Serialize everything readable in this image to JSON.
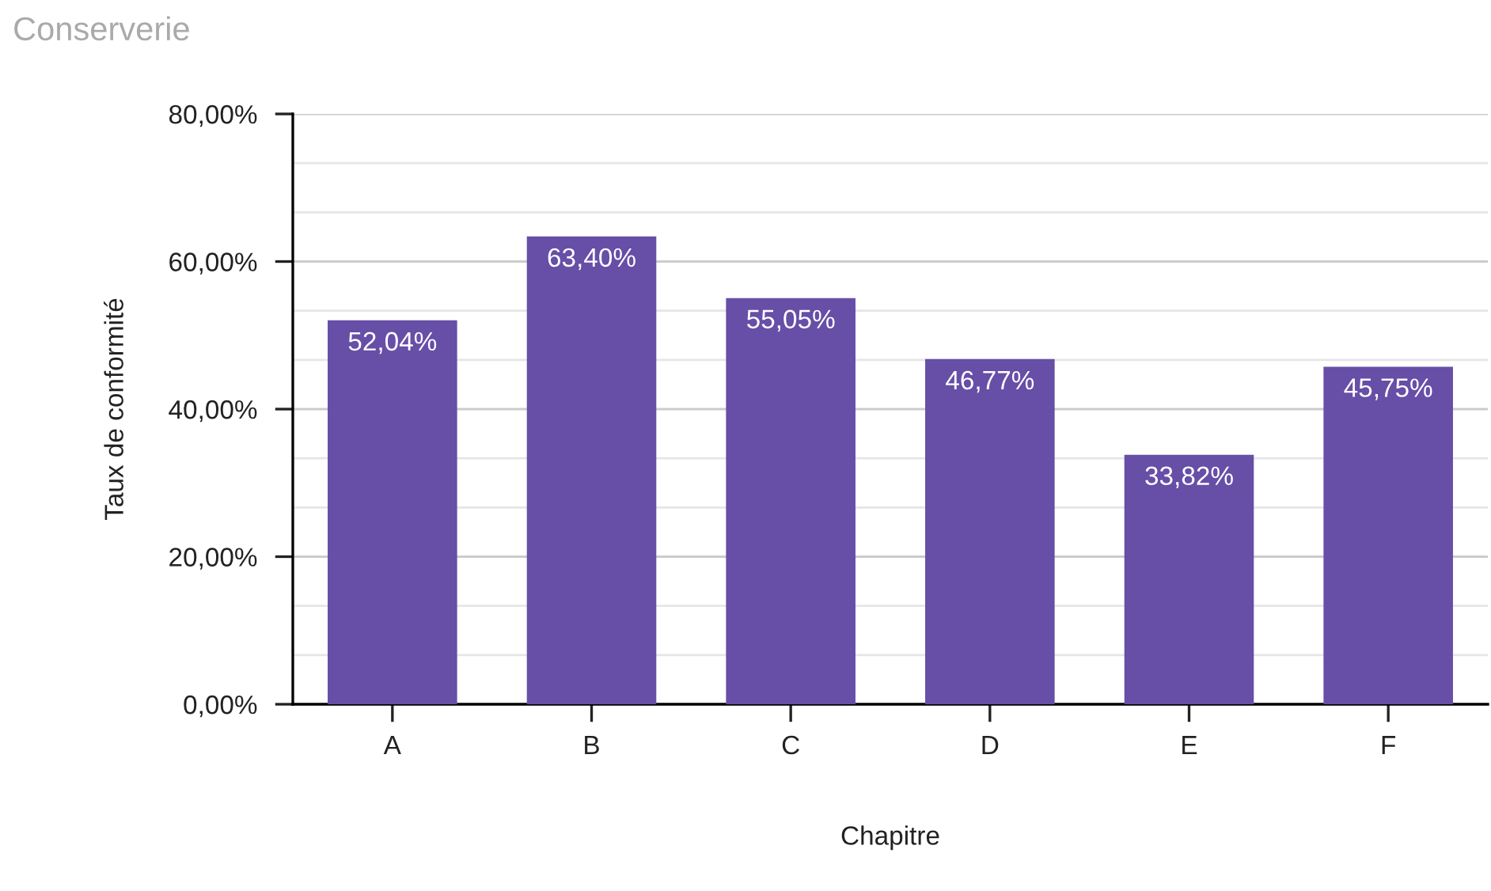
{
  "chart_data": {
    "type": "bar",
    "title": "Conserverie",
    "xlabel": "Chapitre",
    "ylabel": "Taux de conformité",
    "categories": [
      "A",
      "B",
      "C",
      "D",
      "E",
      "F"
    ],
    "values": [
      52.04,
      63.4,
      55.05,
      46.77,
      33.82,
      45.75
    ],
    "value_labels": [
      "52,04%",
      "63,40%",
      "55,05%",
      "46,77%",
      "33,82%",
      "45,75%"
    ],
    "color": "#674ea7",
    "ylim": [
      0,
      80
    ],
    "yticks": [
      {
        "value": 0,
        "label": "0,00%"
      },
      {
        "value": 6.667,
        "label": null
      },
      {
        "value": 13.333,
        "label": null
      },
      {
        "value": 20,
        "label": "20,00%"
      },
      {
        "value": 26.667,
        "label": null
      },
      {
        "value": 33.333,
        "label": null
      },
      {
        "value": 40,
        "label": "40,00%"
      },
      {
        "value": 46.667,
        "label": null
      },
      {
        "value": 53.333,
        "label": null
      },
      {
        "value": 60,
        "label": "60,00%"
      },
      {
        "value": 66.667,
        "label": null
      },
      {
        "value": 73.333,
        "label": null
      },
      {
        "value": 80,
        "label": "80,00%"
      }
    ],
    "grid": "y"
  }
}
